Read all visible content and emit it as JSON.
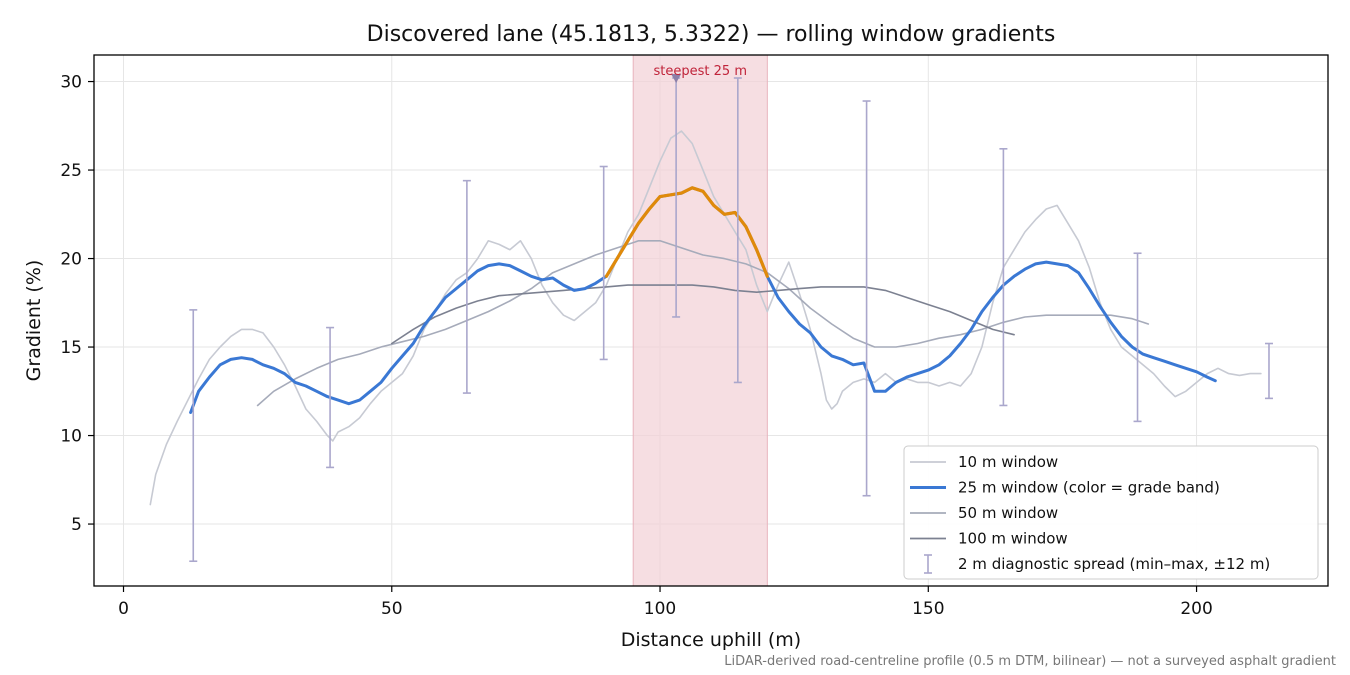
{
  "chart_data": {
    "type": "line",
    "title": "Discovered lane (45.1813, 5.3322) — rolling window gradients",
    "xlabel": "Distance uphill (m)",
    "ylabel": "Gradient (%)",
    "xlim": [
      -5.5,
      224.5
    ],
    "ylim": [
      1.5,
      31.5
    ],
    "xticks": [
      0,
      50,
      100,
      150,
      200
    ],
    "yticks": [
      5,
      10,
      15,
      20,
      25,
      30
    ],
    "grid": true,
    "legend_position": "lower-right",
    "footnote": "LiDAR-derived road-centreline profile (0.5 m DTM, bilinear) — not a surveyed asphalt gradient",
    "colors": {
      "w10": "#c7cad3",
      "w25": "#3a78d4",
      "w25_steep": "#e08a0a",
      "w50": "#a6abba",
      "w100": "#7c8191",
      "errorbar": "#aaa7cc",
      "steep_band": "#f2d0d6",
      "steep_label": "#c0243a"
    },
    "steepest": {
      "label": "steepest 25 m",
      "x_start": 95,
      "x_end": 120,
      "peak_x": 103,
      "peak_y": 30.2
    },
    "series": [
      {
        "name": "10 m window",
        "key": "w10",
        "x": [
          5,
          6,
          8,
          10,
          12,
          14,
          16,
          18,
          20,
          22,
          24,
          26,
          28,
          30,
          32,
          34,
          36,
          38,
          39,
          40,
          42,
          44,
          46,
          48,
          50,
          52,
          54,
          56,
          58,
          60,
          62,
          64,
          66,
          68,
          70,
          72,
          74,
          76,
          78,
          80,
          82,
          84,
          86,
          88,
          90,
          92,
          94,
          96,
          98,
          100,
          102,
          104,
          106,
          108,
          110,
          112,
          114,
          116,
          118,
          120,
          122,
          124,
          126,
          128,
          130,
          131,
          132,
          133,
          134,
          136,
          138,
          140,
          142,
          144,
          146,
          148,
          150,
          152,
          154,
          156,
          158,
          160,
          162,
          164,
          166,
          168,
          170,
          172,
          174,
          176,
          178,
          180,
          182,
          184,
          186,
          188,
          190,
          192,
          194,
          196,
          198,
          200,
          202,
          204,
          206,
          208,
          210,
          212
        ],
        "y": [
          6.1,
          7.8,
          9.5,
          10.8,
          12.0,
          13.2,
          14.3,
          15.0,
          15.6,
          16.0,
          16.0,
          15.8,
          15.0,
          14.0,
          12.8,
          11.5,
          10.8,
          10.0,
          9.7,
          10.2,
          10.5,
          11.0,
          11.8,
          12.5,
          13.0,
          13.5,
          14.5,
          16.0,
          17.0,
          18.0,
          18.8,
          19.2,
          20.0,
          21.0,
          20.8,
          20.5,
          21.0,
          20.0,
          18.5,
          17.5,
          16.8,
          16.5,
          17.0,
          17.5,
          18.5,
          20.0,
          21.5,
          22.5,
          24.0,
          25.5,
          26.8,
          27.2,
          26.5,
          25.0,
          23.5,
          22.5,
          21.5,
          20.5,
          18.5,
          17.0,
          18.5,
          19.8,
          18.0,
          16.0,
          13.5,
          12.0,
          11.5,
          11.8,
          12.5,
          13.0,
          13.2,
          13.0,
          13.5,
          13.0,
          13.2,
          13.0,
          13.0,
          12.8,
          13.0,
          12.8,
          13.5,
          15.0,
          17.5,
          19.5,
          20.5,
          21.5,
          22.2,
          22.8,
          23.0,
          22.0,
          21.0,
          19.5,
          17.5,
          16.0,
          15.0,
          14.5,
          14.0,
          13.5,
          12.8,
          12.2,
          12.5,
          13.0,
          13.5,
          13.8,
          13.5,
          13.4,
          13.5,
          13.5
        ]
      },
      {
        "name": "25 m window (color = grade band)",
        "key": "w25",
        "x": [
          12.5,
          14,
          16,
          18,
          20,
          22,
          24,
          26,
          28,
          30,
          32,
          34,
          36,
          38,
          40,
          42,
          44,
          46,
          48,
          50,
          52,
          54,
          56,
          58,
          60,
          62,
          64,
          66,
          68,
          70,
          72,
          74,
          76,
          78,
          80,
          82,
          84,
          86,
          88,
          90,
          92,
          94,
          96,
          98,
          100,
          102,
          104,
          106,
          108,
          110,
          112,
          114,
          116,
          118,
          120,
          122,
          124,
          126,
          128,
          130,
          132,
          134,
          136,
          138,
          140,
          142,
          144,
          146,
          148,
          150,
          152,
          154,
          156,
          158,
          160,
          162,
          164,
          166,
          168,
          170,
          172,
          174,
          176,
          178,
          180,
          182,
          184,
          186,
          188,
          190,
          192,
          194,
          196,
          198,
          200,
          202,
          203.5
        ],
        "y": [
          11.3,
          12.5,
          13.3,
          14.0,
          14.3,
          14.4,
          14.3,
          14.0,
          13.8,
          13.5,
          13.0,
          12.8,
          12.5,
          12.2,
          12.0,
          11.8,
          12.0,
          12.5,
          13.0,
          13.8,
          14.5,
          15.2,
          16.2,
          17.0,
          17.8,
          18.3,
          18.8,
          19.3,
          19.6,
          19.7,
          19.6,
          19.3,
          19.0,
          18.8,
          18.9,
          18.5,
          18.2,
          18.3,
          18.6,
          19.0,
          20.0,
          21.0,
          22.0,
          22.8,
          23.5,
          23.6,
          23.7,
          24.0,
          23.8,
          23.0,
          22.5,
          22.6,
          21.8,
          20.5,
          19.0,
          17.8,
          17.0,
          16.3,
          15.8,
          15.0,
          14.5,
          14.3,
          14.0,
          14.1,
          12.5,
          12.5,
          13.0,
          13.3,
          13.5,
          13.7,
          14.0,
          14.5,
          15.2,
          16.0,
          17.0,
          17.8,
          18.5,
          19.0,
          19.4,
          19.7,
          19.8,
          19.7,
          19.6,
          19.2,
          18.3,
          17.3,
          16.4,
          15.6,
          15.0,
          14.6,
          14.4,
          14.2,
          14.0,
          13.8,
          13.6,
          13.3,
          13.1
        ]
      },
      {
        "name": "50 m window",
        "key": "w50",
        "x": [
          25,
          28,
          32,
          36,
          40,
          44,
          48,
          52,
          56,
          60,
          64,
          68,
          72,
          76,
          80,
          84,
          88,
          92,
          96,
          100,
          104,
          108,
          112,
          116,
          120,
          124,
          128,
          132,
          136,
          140,
          144,
          148,
          152,
          156,
          160,
          164,
          168,
          172,
          176,
          180,
          184,
          188,
          191
        ],
        "y": [
          11.7,
          12.5,
          13.2,
          13.8,
          14.3,
          14.6,
          15.0,
          15.3,
          15.6,
          16.0,
          16.5,
          17.0,
          17.6,
          18.3,
          19.2,
          19.7,
          20.2,
          20.6,
          21.0,
          21.0,
          20.6,
          20.2,
          20.0,
          19.7,
          19.2,
          18.3,
          17.2,
          16.3,
          15.5,
          15.0,
          15.0,
          15.2,
          15.5,
          15.7,
          16.0,
          16.4,
          16.7,
          16.8,
          16.8,
          16.8,
          16.8,
          16.6,
          16.3
        ]
      },
      {
        "name": "100 m window",
        "key": "w100",
        "x": [
          50,
          54,
          58,
          62,
          66,
          70,
          74,
          78,
          82,
          86,
          90,
          94,
          98,
          102,
          106,
          110,
          114,
          118,
          122,
          126,
          130,
          134,
          138,
          142,
          146,
          150,
          154,
          158,
          162,
          166
        ],
        "y": [
          15.2,
          16.0,
          16.7,
          17.2,
          17.6,
          17.9,
          18.0,
          18.1,
          18.2,
          18.3,
          18.4,
          18.5,
          18.5,
          18.5,
          18.5,
          18.4,
          18.2,
          18.1,
          18.2,
          18.3,
          18.4,
          18.4,
          18.4,
          18.2,
          17.8,
          17.4,
          17.0,
          16.5,
          16.0,
          15.7
        ]
      }
    ],
    "errorbars": {
      "name": "2 m diagnostic spread (min–max, ±12 m)",
      "x": [
        13,
        38.5,
        64,
        89.5,
        103,
        114.5,
        138.5,
        164,
        189,
        213.5
      ],
      "low": [
        2.9,
        8.2,
        12.4,
        14.3,
        16.7,
        13.0,
        6.6,
        11.7,
        10.8,
        12.1
      ],
      "high": [
        17.1,
        16.1,
        24.4,
        25.2,
        30.2,
        30.2,
        28.9,
        26.2,
        20.3,
        15.2
      ]
    }
  }
}
